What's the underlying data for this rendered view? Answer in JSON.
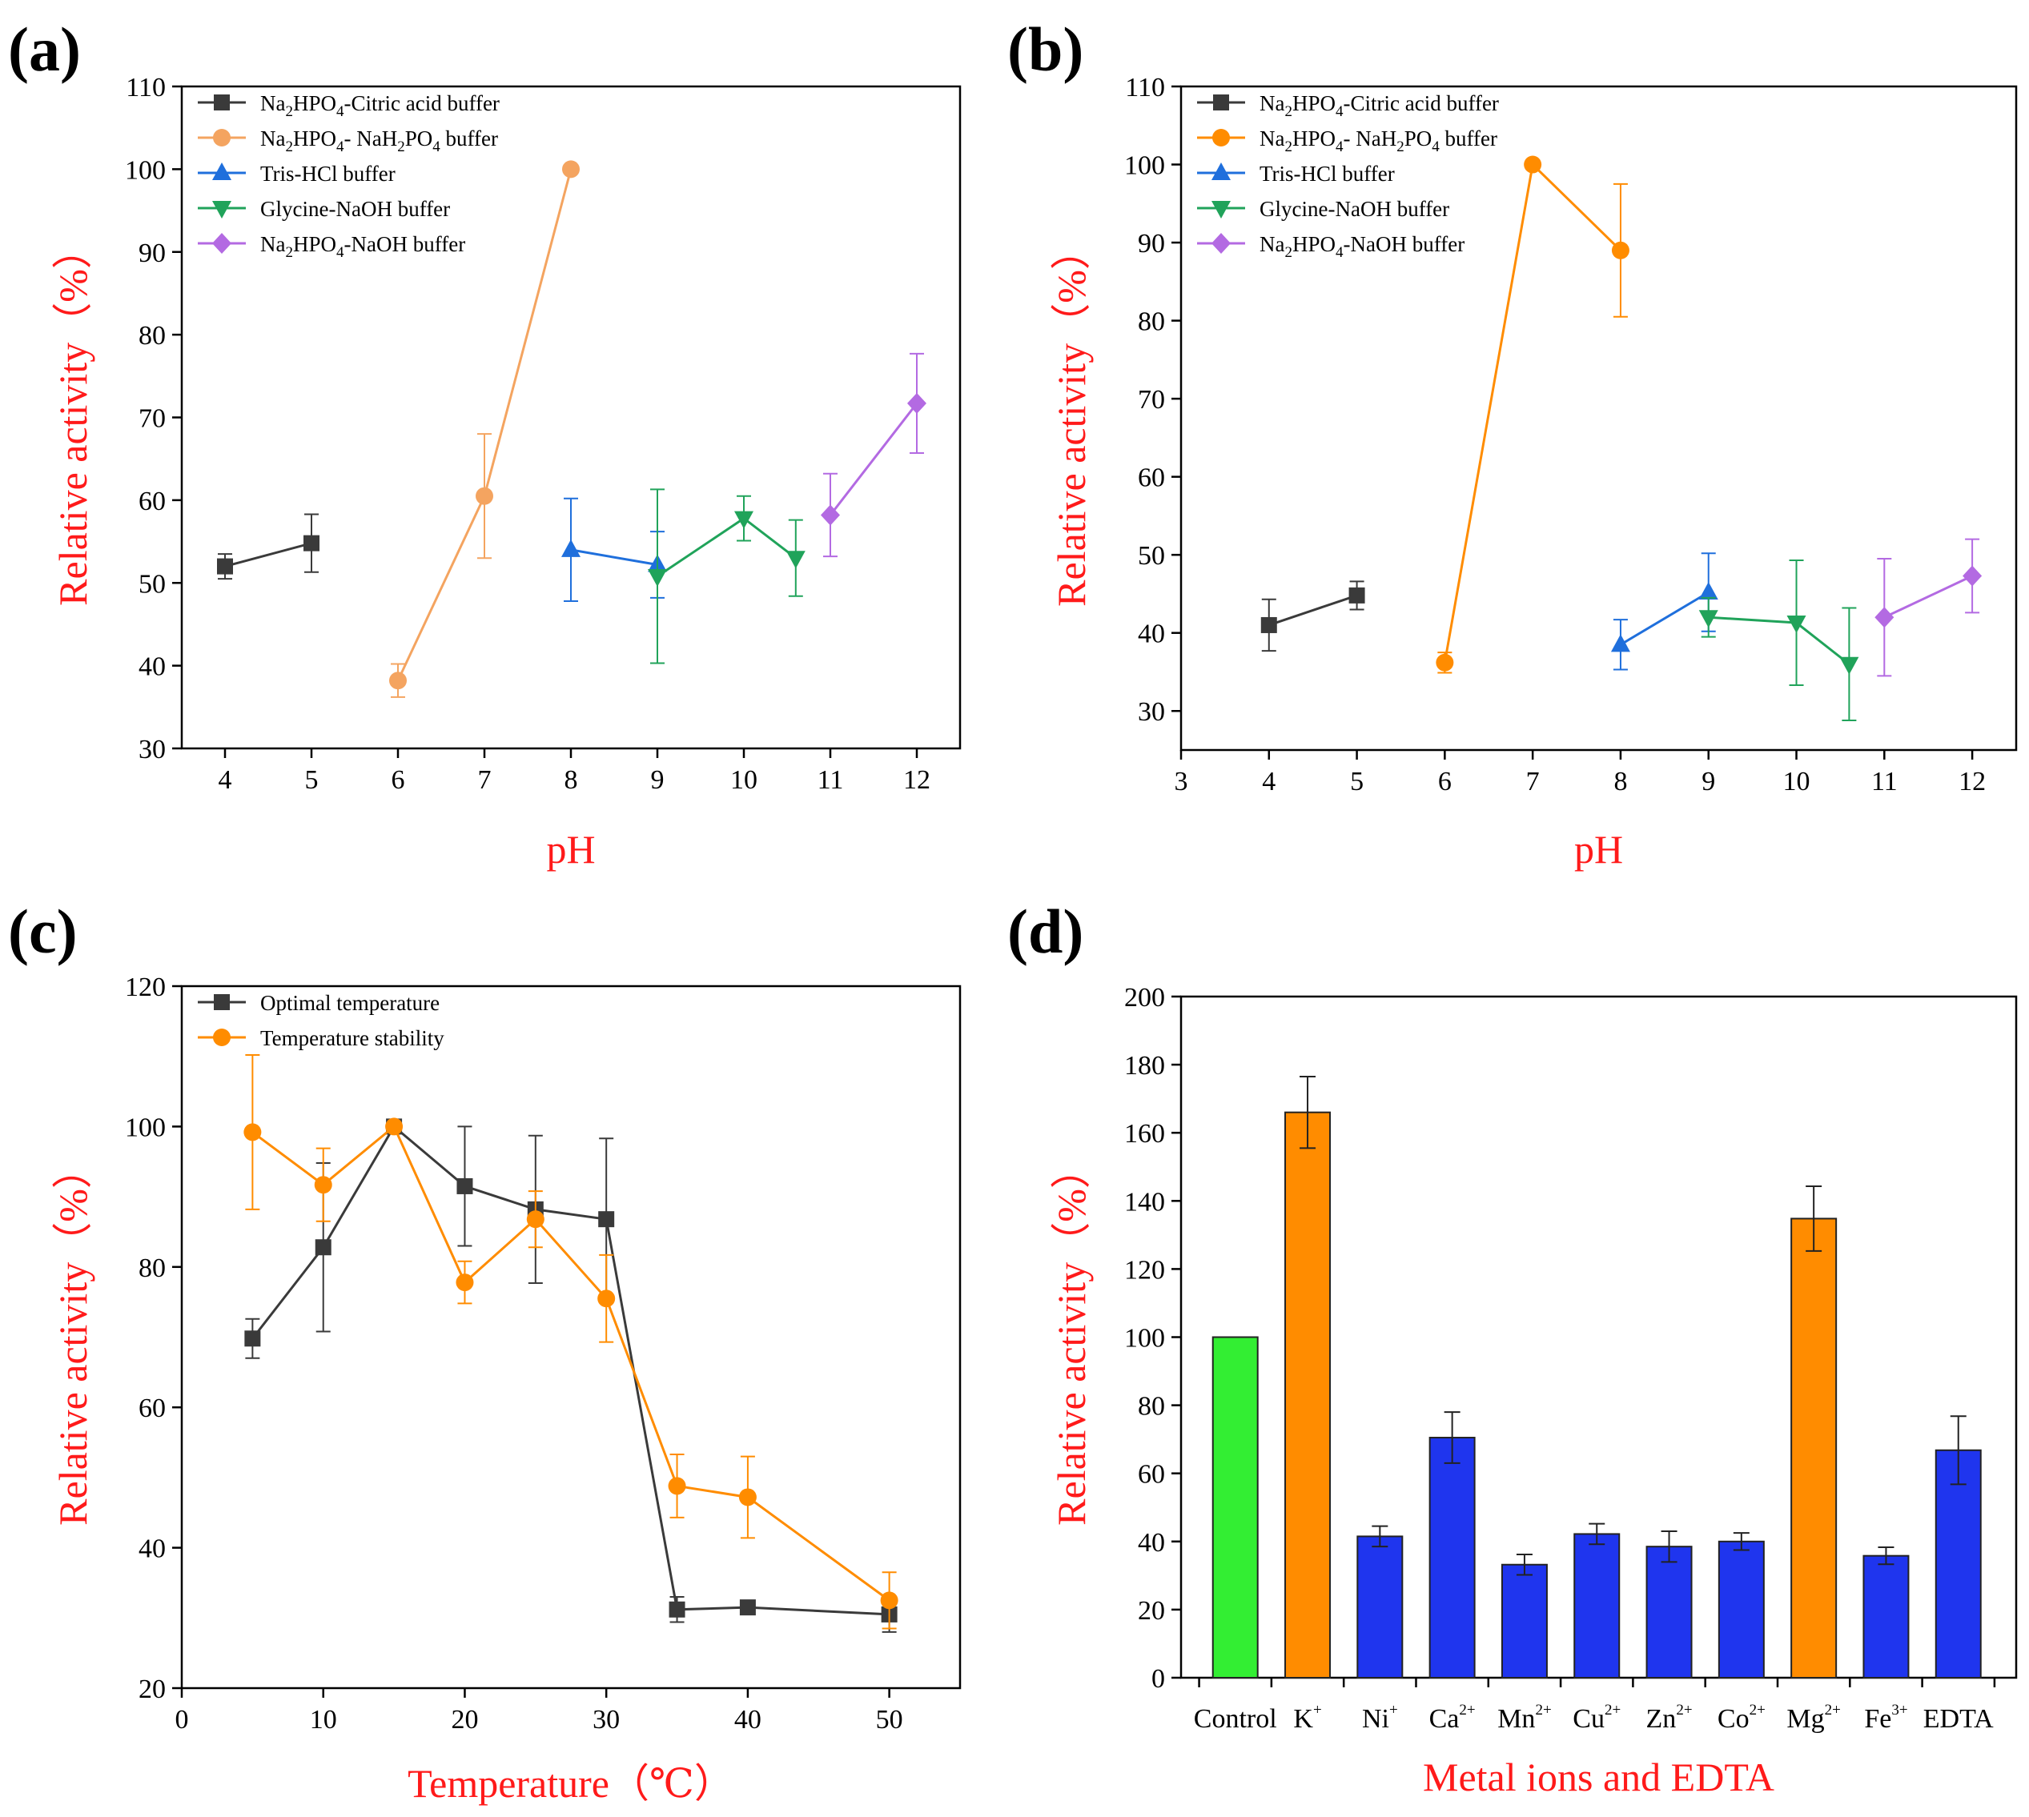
{
  "chart_data": [
    {
      "id": "a",
      "panel_label": "(a)",
      "type": "line",
      "xlabel": "pH",
      "ylabel": "Relative activity（%）",
      "xlim": [
        3.5,
        12.5
      ],
      "ylim": [
        30,
        110
      ],
      "xticks": [
        4,
        5,
        6,
        7,
        8,
        9,
        10,
        11,
        12
      ],
      "yticks": [
        30,
        40,
        50,
        60,
        70,
        80,
        90,
        100,
        110
      ],
      "series": [
        {
          "name": "Na2HPO4-Citric acid buffer",
          "label_main": "Na",
          "label_sub1": "2",
          "label_mid": "HPO",
          "label_sub2": "4",
          "label_tail": "-Citric acid buffer",
          "color": "#3a3a3a",
          "marker": "square",
          "x": [
            4,
            5
          ],
          "y": [
            52,
            54.8
          ],
          "err": [
            1.5,
            3.5
          ]
        },
        {
          "name": "Na2HPO4- NaH2PO4 buffer",
          "label_main": "Na",
          "label_sub1": "2",
          "label_mid": "HPO",
          "label_sub2": "4",
          "label_tail": "- NaH",
          "label_sub3": "2",
          "label_tail2": "PO",
          "label_sub4": "4",
          "label_tail3": " buffer",
          "color": "#f4a460",
          "marker": "circle",
          "x": [
            6,
            7,
            8
          ],
          "y": [
            38.2,
            60.5,
            100
          ],
          "err": [
            2,
            7.5,
            0
          ]
        },
        {
          "name": "Tris-HCl buffer",
          "label": "Tris-HCl buffer",
          "color": "#1f6fdc",
          "marker": "triangle",
          "x": [
            8,
            9
          ],
          "y": [
            54,
            52.2
          ],
          "err": [
            6.2,
            4
          ]
        },
        {
          "name": "Glycine-NaOH buffer",
          "label": "Glycine-NaOH buffer",
          "color": "#20a35a",
          "marker": "triangle-down",
          "x": [
            9,
            10,
            10.6
          ],
          "y": [
            50.8,
            57.8,
            53
          ],
          "err": [
            10.5,
            2.7,
            4.6
          ]
        },
        {
          "name": "Na2HPO4-NaOH buffer",
          "label_main": "Na",
          "label_sub1": "2",
          "label_mid": "HPO",
          "label_sub2": "4",
          "label_tail": "-NaOH buffer",
          "color": "#b36ae2",
          "marker": "diamond",
          "x": [
            11,
            12
          ],
          "y": [
            58.2,
            71.7
          ],
          "err": [
            5,
            6
          ]
        }
      ]
    },
    {
      "id": "b",
      "panel_label": "(b)",
      "type": "line",
      "xlabel": "pH",
      "ylabel": "Relative activity（%）",
      "xlim": [
        3,
        12.5
      ],
      "ylim": [
        25,
        110
      ],
      "xticks": [
        3,
        4,
        5,
        6,
        7,
        8,
        9,
        10,
        11,
        12
      ],
      "yticks": [
        30,
        40,
        50,
        60,
        70,
        80,
        90,
        100,
        110
      ],
      "series": [
        {
          "name": "Na2HPO4-Citric acid buffer",
          "label_main": "Na",
          "label_sub1": "2",
          "label_mid": "HPO",
          "label_sub2": "4",
          "label_tail": "-Citric acid buffer",
          "color": "#3a3a3a",
          "marker": "square",
          "x": [
            4,
            5
          ],
          "y": [
            41,
            44.8
          ],
          "err": [
            3.3,
            1.8
          ]
        },
        {
          "name": "Na2HPO4- NaH2PO4 buffer",
          "label_main": "Na",
          "label_sub1": "2",
          "label_mid": "HPO",
          "label_sub2": "4",
          "label_tail": "- NaH",
          "label_sub3": "2",
          "label_tail2": "PO",
          "label_sub4": "4",
          "label_tail3": " buffer",
          "color": "#ff8c00",
          "marker": "circle",
          "x": [
            6,
            7,
            8
          ],
          "y": [
            36.2,
            100,
            89
          ],
          "err": [
            1.3,
            0,
            8.5
          ]
        },
        {
          "name": "Tris-HCl buffer",
          "label": "Tris-HCl buffer",
          "color": "#1f6fdc",
          "marker": "triangle",
          "x": [
            8,
            9
          ],
          "y": [
            38.5,
            45.2
          ],
          "err": [
            3.2,
            5
          ]
        },
        {
          "name": "Glycine-NaOH buffer",
          "label": "Glycine-NaOH buffer",
          "color": "#20a35a",
          "marker": "triangle-down",
          "x": [
            9,
            10,
            10.6
          ],
          "y": [
            42,
            41.3,
            36
          ],
          "err": [
            2.5,
            8,
            7.2
          ]
        },
        {
          "name": "Na2HPO4-NaOH buffer",
          "label_main": "Na",
          "label_sub1": "2",
          "label_mid": "HPO",
          "label_sub2": "4",
          "label_tail": "-NaOH buffer",
          "color": "#b36ae2",
          "marker": "diamond",
          "x": [
            11,
            12
          ],
          "y": [
            42,
            47.3
          ],
          "err": [
            7.5,
            4.7
          ]
        }
      ]
    },
    {
      "id": "c",
      "panel_label": "(c)",
      "type": "line",
      "xlabel": "Temperature（℃）",
      "ylabel": "Relative activity（%）",
      "xlim": [
        0,
        55
      ],
      "ylim": [
        20,
        120
      ],
      "xticks": [
        0,
        10,
        20,
        30,
        40,
        50
      ],
      "yticks": [
        20,
        40,
        60,
        80,
        100,
        120
      ],
      "series": [
        {
          "name": "Optimal temperature",
          "label": "Optimal temperature",
          "color": "#3a3a3a",
          "marker": "square",
          "x": [
            5,
            10,
            15,
            20,
            25,
            30,
            35,
            40,
            50
          ],
          "y": [
            69.8,
            82.8,
            100,
            91.5,
            88.2,
            86.8,
            31.2,
            31.5,
            30.5
          ],
          "err": [
            2.8,
            12,
            0,
            8.5,
            10.5,
            11.5,
            1.8,
            0,
            2.5
          ]
        },
        {
          "name": "Temperature stability",
          "label": "Temperature stability",
          "color": "#ff8c00",
          "marker": "circle",
          "x": [
            5,
            10,
            15,
            20,
            25,
            30,
            35,
            40,
            50
          ],
          "y": [
            99.2,
            91.7,
            100,
            77.8,
            86.8,
            75.5,
            48.8,
            47.2,
            32.5
          ],
          "err": [
            11,
            5.2,
            0,
            3,
            4,
            6.2,
            4.5,
            5.8,
            4
          ]
        }
      ]
    },
    {
      "id": "d",
      "panel_label": "(d)",
      "type": "bar",
      "xlabel": "Metal ions and EDTA",
      "ylabel": "Relative activity（%）",
      "ylim": [
        0,
        200
      ],
      "yticks": [
        0,
        20,
        40,
        60,
        80,
        100,
        120,
        140,
        160,
        180,
        200
      ],
      "categories": [
        {
          "main": "Control",
          "sup": ""
        },
        {
          "main": "K",
          "sup": "+"
        },
        {
          "main": "Ni",
          "sup": "+"
        },
        {
          "main": "Ca",
          "sup": "2+"
        },
        {
          "main": "Mn",
          "sup": "2+"
        },
        {
          "main": "Cu",
          "sup": "2+"
        },
        {
          "main": "Zn",
          "sup": "2+"
        },
        {
          "main": "Co",
          "sup": "2+"
        },
        {
          "main": "Mg",
          "sup": "2+"
        },
        {
          "main": "Fe",
          "sup": "3+"
        },
        {
          "main": "EDTA",
          "sup": ""
        }
      ],
      "values": [
        100,
        166,
        41.5,
        70.5,
        33.2,
        42.2,
        38.5,
        40,
        134.8,
        35.8,
        66.8
      ],
      "errors": [
        0,
        10.5,
        3,
        7.5,
        3,
        3,
        4.5,
        2.5,
        9.5,
        2.5,
        10
      ],
      "colors": [
        "#33ee33",
        "#ff8c00",
        "#1f35ee",
        "#1f35ee",
        "#1f35ee",
        "#1f35ee",
        "#1f35ee",
        "#1f35ee",
        "#ff8c00",
        "#1f35ee",
        "#1f35ee"
      ]
    }
  ]
}
